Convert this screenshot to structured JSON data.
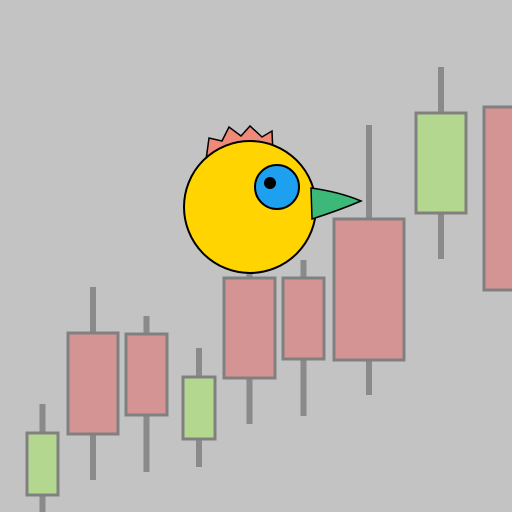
{
  "colors": {
    "background": "#c3c3c3",
    "bull": "#b4d78f",
    "bear": "#d49494",
    "wick": "#8a8a8a",
    "outline": "#808080",
    "bird_body": "#ffd400",
    "bird_crest": "#f08a78",
    "bird_eye": "#1ea0f0",
    "bird_pupil": "#000000",
    "bird_beak": "#3cb878"
  },
  "player": {
    "name": "bird",
    "icon": "bird-icon"
  },
  "candles": [
    {
      "direction": "bull"
    },
    {
      "direction": "bear"
    },
    {
      "direction": "bear"
    },
    {
      "direction": "bull"
    },
    {
      "direction": "bear"
    },
    {
      "direction": "bear"
    },
    {
      "direction": "bear"
    },
    {
      "direction": "bull"
    },
    {
      "direction": "bear"
    }
  ]
}
